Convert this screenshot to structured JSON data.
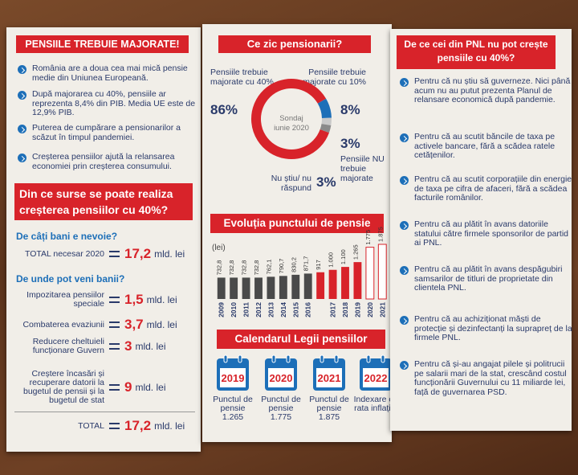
{
  "left": {
    "title": "PENSIILE TREBUIE MAJORATE!",
    "bullets": [
      "România are a doua cea mai mică pensie medie din Uniunea Europeană.",
      "După majorarea cu 40%, pensiile ar reprezenta 8,4% din PIB. Media UE este de 12,9% PIB.",
      "Puterea de cumpărare a pensionarilor a scăzut în timpul pandemiei.",
      "Creșterea pensiilor ajută la relansarea economiei prin creșterea consumului."
    ],
    "heading": "Din ce surse se poate realiza creșterea pensiilor cu 40%?",
    "need_question": "De câți bani e nevoie?",
    "need": {
      "label": "TOTAL necesar 2020",
      "value": "17,2",
      "unit": "mld. lei"
    },
    "sources_question": "De unde pot veni banii?",
    "sources": [
      {
        "label": "Impozitarea pensiilor speciale",
        "value": "1,5",
        "unit": "mld. lei"
      },
      {
        "label": "Combaterea evaziunii",
        "value": "3,7",
        "unit": "mld. lei"
      },
      {
        "label": "Reducere cheltuieli funcționare Guvern",
        "value": "3",
        "unit": "mld. lei"
      },
      {
        "label": "Creștere încasări și recuperare datorii la bugetul de pensii și la bugetul de stat",
        "value": "9",
        "unit": "mld. lei"
      }
    ],
    "total": {
      "label": "TOTAL",
      "value": "17,2",
      "unit": "mld. lei"
    }
  },
  "middle": {
    "survey": {
      "title": "Ce zic pensionarii?",
      "center": "Sondaj iunie 2020",
      "slices": [
        {
          "label": "Pensiile trebuie majorate cu 40%",
          "value": 86,
          "value_label": "86%",
          "color": "#d8232a"
        },
        {
          "label": "Pensiile trebuie majorate cu 10%",
          "value": 8,
          "value_label": "8%",
          "color": "#1d6fb8"
        },
        {
          "label": "Pensiile NU trebuie majorate",
          "value": 3,
          "value_label": "3%",
          "color": "#c9c9c9"
        },
        {
          "label": "Nu știu/ nu răspund",
          "value": 3,
          "value_label": "3%",
          "color": "#8a8a8a"
        }
      ]
    },
    "chart": {
      "type": "bar",
      "title": "Evoluția punctului de pensie",
      "unit": "(lei)",
      "categories": [
        "2009",
        "2010",
        "2011",
        "2012",
        "2013",
        "2014",
        "2015",
        "2016",
        null,
        "2017",
        "2018",
        "2019",
        "2020",
        "2021"
      ],
      "values": [
        732.8,
        732.8,
        732.8,
        732.8,
        762.1,
        790.7,
        830.2,
        871.7,
        917,
        1000,
        1100,
        1265,
        1775,
        1875
      ],
      "value_labels": [
        "732,8",
        "732,8",
        "732,8",
        "732,8",
        "762,1",
        "790,7",
        "830,2",
        "871,7",
        "917",
        "1.000",
        "1.100",
        "1.265",
        "1.775",
        "1.875"
      ],
      "colors": [
        "#4a4a4a",
        "#4a4a4a",
        "#4a4a4a",
        "#4a4a4a",
        "#4a4a4a",
        "#4a4a4a",
        "#4a4a4a",
        "#4a4a4a",
        "#d8232a",
        "#d8232a",
        "#d8232a",
        "#d8232a",
        "#ffffff",
        "#ffffff"
      ]
    },
    "calendar": {
      "title": "Calendarul Legii pensiilor",
      "items": [
        {
          "year": "2019",
          "text": "Punctul de pensie 1.265"
        },
        {
          "year": "2020",
          "text": "Punctul de pensie 1.775"
        },
        {
          "year": "2021",
          "text": "Punctul de pensie 1.875"
        },
        {
          "year": "2022",
          "text": "Indexare cu rata inflației"
        }
      ]
    }
  },
  "right": {
    "title": "De ce cei din PNL nu pot crește pensiile cu 40%?",
    "bullets": [
      "Pentru că nu știu să guverneze. Nici până acum nu au putut prezenta Planul de relansare economică după pandemie.",
      "Pentru că au scutit băncile de taxa pe activele bancare, fără a scădea ratele cetățenilor.",
      "Pentru că au scutit corporațiile din energie de taxa pe cifra de afaceri, fără a scădea facturile românilor.",
      "Pentru că au plătit în avans datoriile statului către firmele sponsorilor de partid ai PNL.",
      "Pentru că au plătit în avans despăgubiri samsarilor de titluri de proprietate din clientela PNL.",
      "Pentru că au achiziționat măști de protecție și dezinfectanți la suprapreț de la firmele PNL.",
      "Pentru că și-au angajat pilele și politrucii pe salarii mari de la stat, crescând costul funcționării Guvernului cu 11 miliarde lei, față de guvernarea PSD."
    ]
  }
}
